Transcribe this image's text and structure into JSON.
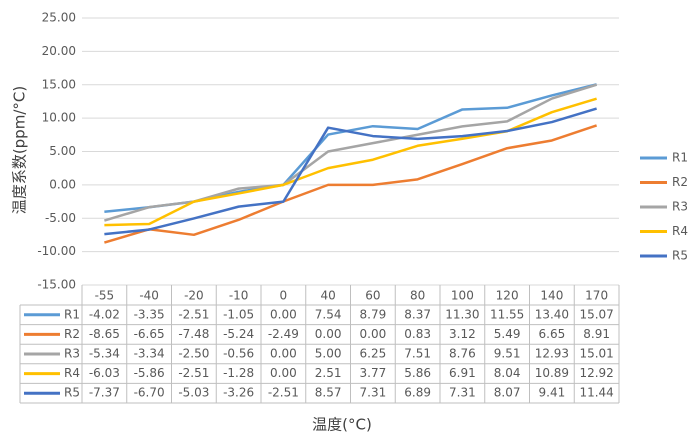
{
  "chart_data": {
    "type": "line",
    "y_label": "温度系数(ppm/°C)",
    "x_label": "温度(°C)",
    "categories": [
      "-55",
      "-40",
      "-20",
      "-10",
      "0",
      "40",
      "60",
      "80",
      "100",
      "120",
      "140",
      "170"
    ],
    "series": [
      {
        "name": "R1",
        "color": "#5b9bd5",
        "values": [
          -4.02,
          -3.35,
          -2.51,
          -1.05,
          0,
          7.54,
          8.79,
          8.37,
          11.3,
          11.55,
          13.4,
          15.07
        ],
        "value_labels": [
          "-4.02",
          "-3.35",
          "-2.51",
          "-1.05",
          "0.00",
          "7.54",
          "8.79",
          "8.37",
          "11.30",
          "11.55",
          "13.40",
          "15.07"
        ]
      },
      {
        "name": "R2",
        "color": "#ed7d31",
        "values": [
          -8.65,
          -6.65,
          -7.48,
          -5.24,
          -2.49,
          0,
          0,
          0.83,
          3.12,
          5.49,
          6.65,
          8.91
        ],
        "value_labels": [
          "-8.65",
          "-6.65",
          "-7.48",
          "-5.24",
          "-2.49",
          "0.00",
          "0.00",
          "0.83",
          "3.12",
          "5.49",
          "6.65",
          "8.91"
        ]
      },
      {
        "name": "R3",
        "color": "#a5a5a5",
        "values": [
          -5.34,
          -3.34,
          -2.5,
          -0.56,
          0,
          5,
          6.25,
          7.51,
          8.76,
          9.51,
          12.93,
          15.01
        ],
        "value_labels": [
          "-5.34",
          "-3.34",
          "-2.50",
          "-0.56",
          "0.00",
          "5.00",
          "6.25",
          "7.51",
          "8.76",
          "9.51",
          "12.93",
          "15.01"
        ]
      },
      {
        "name": "R4",
        "color": "#ffc000",
        "values": [
          -6.03,
          -5.86,
          -2.51,
          -1.28,
          0,
          2.51,
          3.77,
          5.86,
          6.91,
          8.04,
          10.89,
          12.92
        ],
        "value_labels": [
          "-6.03",
          "-5.86",
          "-2.51",
          "-1.28",
          "0.00",
          "2.51",
          "3.77",
          "5.86",
          "6.91",
          "8.04",
          "10.89",
          "12.92"
        ]
      },
      {
        "name": "R5",
        "color": "#4472c4",
        "values": [
          -7.37,
          -6.7,
          -5.03,
          -3.26,
          -2.51,
          8.57,
          7.31,
          6.89,
          7.31,
          8.07,
          9.41,
          11.44
        ],
        "value_labels": [
          "-7.37",
          "-6.70",
          "-5.03",
          "-3.26",
          "-2.51",
          "8.57",
          "7.31",
          "6.89",
          "7.31",
          "8.07",
          "9.41",
          "11.44"
        ]
      }
    ],
    "ylim": [
      -15,
      25
    ],
    "yticks": [
      {
        "value": -15,
        "label": "-15.00"
      },
      {
        "value": -10,
        "label": "-10.00"
      },
      {
        "value": -5,
        "label": "-5.00"
      },
      {
        "value": 0,
        "label": "0.00"
      },
      {
        "value": 5,
        "label": "5.00"
      },
      {
        "value": 10,
        "label": "10.00"
      },
      {
        "value": 15,
        "label": "15.00"
      },
      {
        "value": 20,
        "label": "20.00"
      },
      {
        "value": 25,
        "label": "25.00"
      }
    ],
    "grid": true,
    "legend": "right"
  }
}
